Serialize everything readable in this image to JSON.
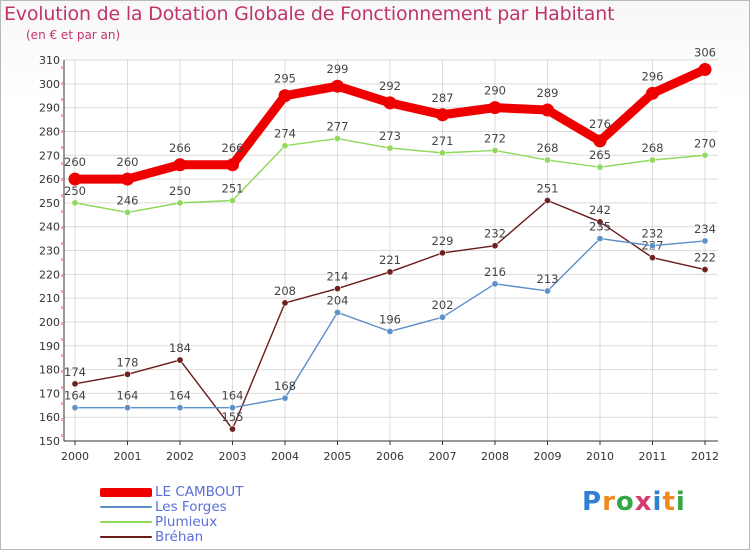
{
  "title": "Evolution de la Dotation Globale de Fonctionnement par Habitant",
  "subtitle": "(en € et par an)",
  "brand": {
    "text": "Proxiti",
    "letters": [
      "P",
      "r",
      "o",
      "x",
      "i",
      "t",
      "i"
    ],
    "colors": [
      "#2f7fd3",
      "#ef8a1e",
      "#35a845",
      "#d63b6e",
      "#2f7fd3",
      "#ef8a1e",
      "#35a845"
    ]
  },
  "chart_data": {
    "type": "line",
    "title": "Evolution de la Dotation Globale de Fonctionnement par Habitant",
    "subtitle": "(en € et par an)",
    "xlabel": "",
    "ylabel": "",
    "ylim": [
      150,
      310
    ],
    "yticks": [
      150,
      160,
      170,
      180,
      190,
      200,
      210,
      220,
      230,
      240,
      250,
      260,
      270,
      280,
      290,
      300,
      310
    ],
    "grid": true,
    "categories": [
      "2000",
      "2001",
      "2002",
      "2003",
      "2004",
      "2005",
      "2006",
      "2007",
      "2008",
      "2009",
      "2010",
      "2011",
      "2012"
    ],
    "legend_position": "bottom-left",
    "series": [
      {
        "name": "Bréhan",
        "color": "#6b1a1a",
        "values": [
          174,
          178,
          184,
          155,
          208,
          214,
          221,
          229,
          232,
          251,
          242,
          227,
          222
        ]
      },
      {
        "name": "Les Forges",
        "color": "#5b8fc7",
        "values": [
          164,
          164,
          164,
          164,
          168,
          204,
          196,
          202,
          216,
          213,
          235,
          232,
          234
        ]
      },
      {
        "name": "Plumieux",
        "color": "#8ed85a",
        "values": [
          250,
          246,
          250,
          251,
          274,
          277,
          273,
          271,
          272,
          268,
          265,
          268,
          270
        ]
      },
      {
        "name": "LE CAMBOUT",
        "color": "#ee0000",
        "values": [
          260,
          260,
          266,
          266,
          295,
          299,
          292,
          287,
          290,
          289,
          276,
          296,
          306
        ]
      }
    ],
    "legend": [
      "LE CAMBOUT",
      "Les Forges",
      "Plumieux",
      "Bréhan"
    ]
  }
}
